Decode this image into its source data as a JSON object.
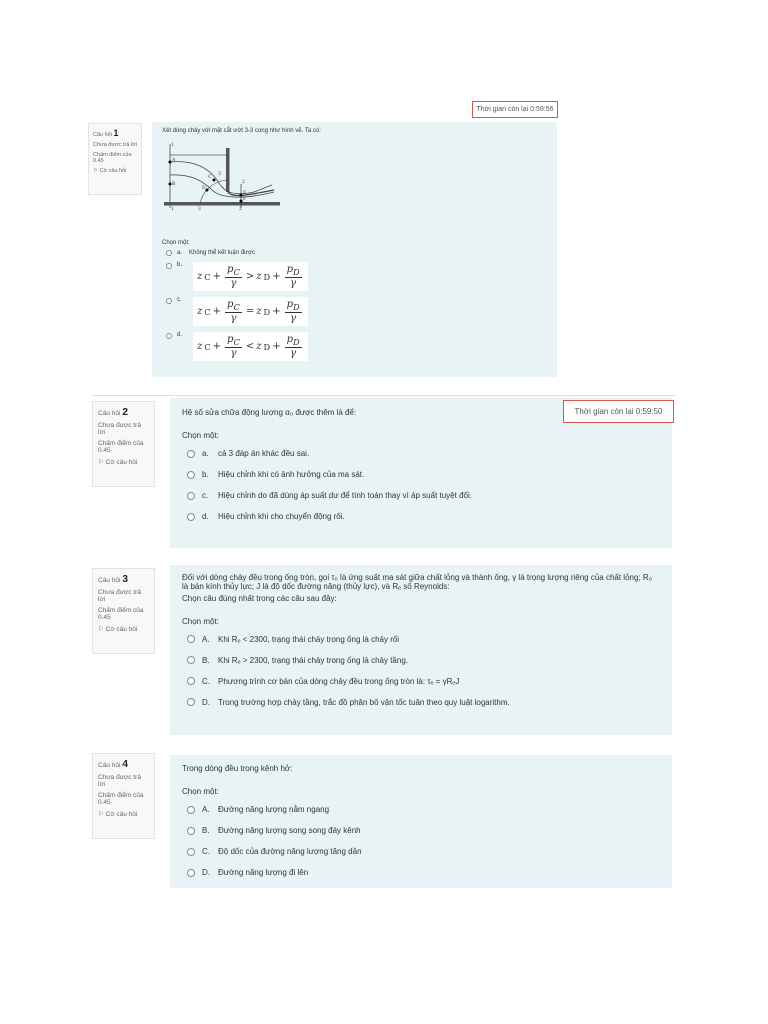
{
  "questions": [
    {
      "label": "Câu hỏi",
      "number": "1",
      "status": "Chưa được trả lời",
      "grade": "Chấm điểm của 0.45",
      "flag": "Cờ câu hỏi",
      "timer": "Thời gian còn lại 0:59:56",
      "text": "Xét dòng chảy với mặt cắt ướt  3-3 cong như hình vẽ. Ta có:",
      "prompt": "Chọn một:",
      "options": [
        {
          "letter": "a.",
          "text": "Không thể kết luận được"
        },
        {
          "letter": "b.",
          "relation": ">"
        },
        {
          "letter": "c.",
          "relation": "="
        },
        {
          "letter": "d.",
          "relation": "<"
        }
      ],
      "formula": {
        "z_c": "z",
        "sub_c": "C",
        "p_c": "p",
        "gamma": "γ",
        "z_d": "z",
        "sub_d": "D",
        "p_d": "p",
        "plus": "+"
      },
      "diagram_labels": [
        "1",
        "A",
        "B",
        "C",
        "D",
        "3",
        "2",
        "E",
        "F",
        "1",
        "3",
        "2"
      ]
    },
    {
      "label": "Câu hỏi",
      "number": "2",
      "status": "Chưa được trả lời",
      "grade": "Chấm điểm của 0.45",
      "flag": "Cờ câu hỏi",
      "timer": "Thời gian còn lại 0:59:50",
      "text": "Hệ số sửa chữa động lượng  α₀ được thêm là để:",
      "prompt": "Chọn một:",
      "options": [
        {
          "letter": "a.",
          "text": "cả 3 đáp án khác đều sai."
        },
        {
          "letter": "b.",
          "text": "Hiệu chỉnh khi có ảnh hưởng của ma sát."
        },
        {
          "letter": "c.",
          "text": "Hiệu chỉnh do đã dùng áp suất dư để tính toán thay vì áp suất tuyệt đối."
        },
        {
          "letter": "d.",
          "text": "Hiệu chỉnh khi  cho chuyển động rối."
        }
      ]
    },
    {
      "label": "Câu hỏi",
      "number": "3",
      "status": "Chưa được trả lời",
      "grade": "Chấm điểm của 0.45",
      "flag": "Cờ câu hỏi",
      "text": "Đối với dòng chảy đều trong ống tròn, gọi τ₀ là ứng suất ma sát giữa chất lỏng và thành ống, γ là trọng lượng riêng của chất lỏng; R₀ là bán kính thủy lực; J là độ dốc đường năng (thủy lực), và Rₑ số Reynolds:",
      "text2": "Chọn câu đúng nhất trong các câu sau đây:",
      "prompt": "Chọn một:",
      "options": [
        {
          "letter": "A.",
          "text": "Khi Rₑ < 2300, trạng thái chảy trong ống là chảy rối"
        },
        {
          "letter": "B.",
          "text": "Khi Rₑ > 2300, trạng thái chảy trong ống là chảy tầng."
        },
        {
          "letter": "C.",
          "text": "Phương trình cơ bản của dòng chảy đều trong ống tròn là: τₑ = γRₑJ"
        },
        {
          "letter": "D.",
          "text": "Trong trường hợp chảy tầng, trắc đồ phân bố vận tốc tuân theo quy luật logarithm."
        }
      ]
    },
    {
      "label": "Câu hỏi",
      "number": "4",
      "status": "Chưa được trả lời",
      "grade": "Chấm điểm của 0.45",
      "flag": "Cờ câu hỏi",
      "text": "Trong dòng đều trong kênh hở:",
      "prompt": "Chọn một:",
      "options": [
        {
          "letter": "A.",
          "text": "Đường năng lượng nằm ngang"
        },
        {
          "letter": "B.",
          "text": "Đường năng lượng song song đáy kênh"
        },
        {
          "letter": "C.",
          "text": "Độ dốc của đường năng lượng tăng dần"
        },
        {
          "letter": "D.",
          "text": "Đường năng lượng đi lên"
        }
      ]
    }
  ],
  "flag_icon": "flag-icon"
}
